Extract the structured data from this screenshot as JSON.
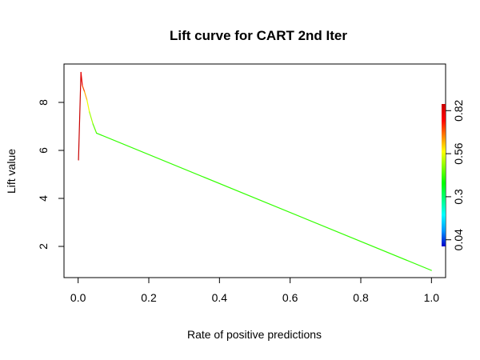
{
  "chart_data": {
    "type": "line",
    "title": "Lift curve for CART 2nd Iter",
    "xlabel": "Rate of positive predictions",
    "ylabel": "Lift value",
    "xlim": [
      -0.04,
      1.04
    ],
    "ylim": [
      0.7,
      9.6
    ],
    "xticks": [
      0.0,
      0.2,
      0.4,
      0.6,
      0.8,
      1.0
    ],
    "xtick_labels": [
      "0.0",
      "0.2",
      "0.4",
      "0.6",
      "0.8",
      "1.0"
    ],
    "yticks": [
      2,
      4,
      6,
      8
    ],
    "ytick_labels": [
      "2",
      "4",
      "6",
      "8"
    ],
    "grid": false,
    "series": [
      {
        "points": [
          {
            "x": 0.001,
            "y": 5.6,
            "cutoff": 0.86
          },
          {
            "x": 0.008,
            "y": 9.25,
            "cutoff": 0.86
          },
          {
            "x": 0.012,
            "y": 8.7,
            "cutoff": 0.74
          },
          {
            "x": 0.018,
            "y": 8.45,
            "cutoff": 0.68
          },
          {
            "x": 0.025,
            "y": 8.1,
            "cutoff": 0.6
          },
          {
            "x": 0.032,
            "y": 7.6,
            "cutoff": 0.52
          },
          {
            "x": 0.042,
            "y": 7.1,
            "cutoff": 0.48
          },
          {
            "x": 0.052,
            "y": 6.72,
            "cutoff": 0.42
          },
          {
            "x": 1.0,
            "y": 1.0,
            "cutoff": 0.42
          }
        ]
      }
    ],
    "colorkey": {
      "range": [
        0.0,
        0.86
      ],
      "ticks": [
        0.04,
        0.3,
        0.56,
        0.82
      ],
      "tick_labels": [
        "0.04",
        "0.3",
        "0.56",
        "0.82"
      ],
      "palette": [
        "#0000c8",
        "#0099ff",
        "#00ffff",
        "#00ff80",
        "#00ff00",
        "#80ff00",
        "#ffff00",
        "#ff8000",
        "#ff0000",
        "#c80000"
      ]
    }
  }
}
